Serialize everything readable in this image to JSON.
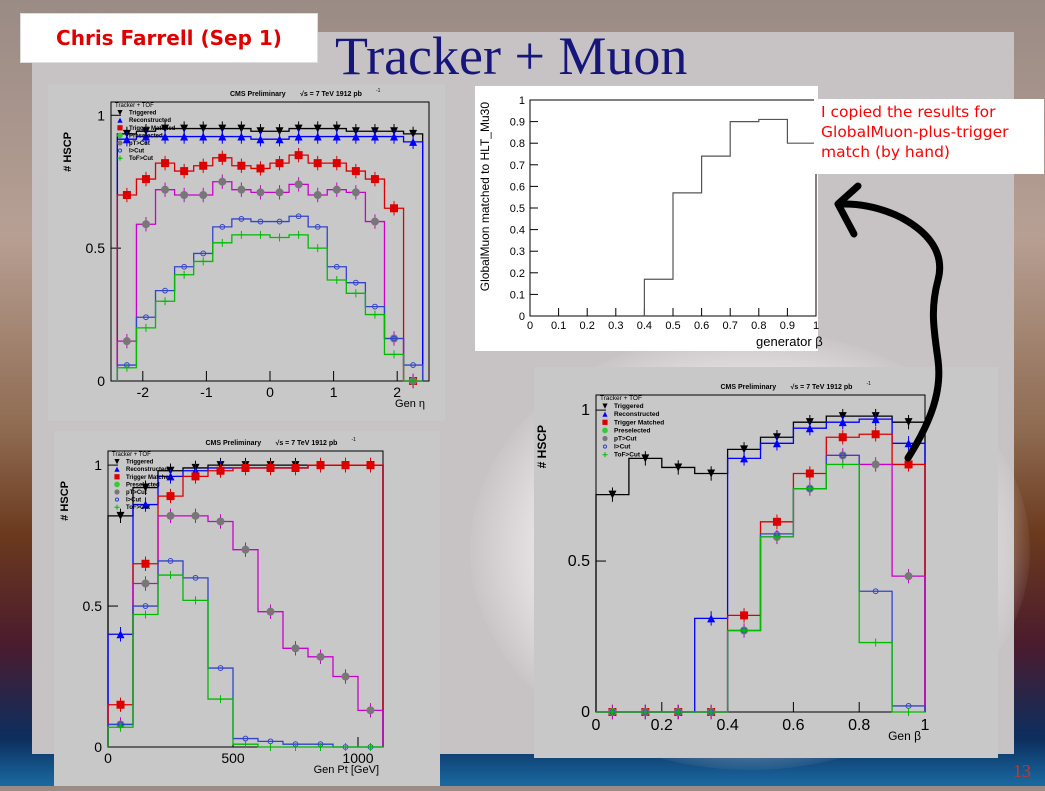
{
  "slide": {
    "title": "Tracker + Muon",
    "author": "Chris Farrell (Sep 1)",
    "page_number": "13",
    "note": "I copied the results for GlobalMuon-plus-trigger match (by hand)"
  },
  "plot_header": "CMS Preliminary",
  "plot_energy": "√s = 7 TeV   1912 pb",
  "plot_energy_exp": "-1",
  "legend": {
    "title": "Tracker + TOF",
    "entries": [
      "Triggered",
      "Reconstructed",
      "Trigger Matched",
      "Preselected",
      "pT>Cut",
      "I>Cut",
      "ToF>Cut"
    ]
  },
  "colors": {
    "triggered": "#000000",
    "reconstructed": "#0000ff",
    "matched": "#dd0000",
    "preselected": "#33cc33",
    "pt": "#cc00cc",
    "ih": "#3344cc",
    "tof": "#00bb00"
  },
  "chart_data": [
    {
      "type": "line",
      "id": "eta",
      "xlabel": "Gen η",
      "ylabel": "# HSCP",
      "xlim": [
        -2.5,
        2.5
      ],
      "ylim": [
        0,
        1.05
      ],
      "xticks": [
        "-2",
        "-1",
        "0",
        "1",
        "2"
      ],
      "yticks": [
        "0",
        "0.5",
        "1"
      ],
      "x": [
        -2.25,
        -1.95,
        -1.65,
        -1.35,
        -1.05,
        -0.75,
        -0.45,
        -0.15,
        0.15,
        0.45,
        0.75,
        1.05,
        1.35,
        1.65,
        1.95,
        2.25
      ],
      "series": [
        {
          "name": "Triggered",
          "values": [
            0.93,
            0.94,
            0.95,
            0.95,
            0.95,
            0.95,
            0.95,
            0.94,
            0.94,
            0.95,
            0.95,
            0.95,
            0.94,
            0.94,
            0.94,
            0.93
          ]
        },
        {
          "name": "Reconstructed",
          "values": [
            0.91,
            0.92,
            0.92,
            0.92,
            0.92,
            0.92,
            0.92,
            0.91,
            0.91,
            0.92,
            0.92,
            0.92,
            0.92,
            0.92,
            0.92,
            0.9
          ]
        },
        {
          "name": "Trigger Matched",
          "values": [
            0.7,
            0.76,
            0.82,
            0.79,
            0.81,
            0.84,
            0.81,
            0.8,
            0.82,
            0.85,
            0.82,
            0.82,
            0.79,
            0.76,
            0.65,
            0.0
          ]
        },
        {
          "name": "pT>Cut",
          "values": [
            0.15,
            0.59,
            0.72,
            0.7,
            0.7,
            0.75,
            0.72,
            0.71,
            0.71,
            0.74,
            0.7,
            0.72,
            0.71,
            0.6,
            0.16,
            0.0
          ]
        },
        {
          "name": "I>Cut",
          "values": [
            0.06,
            0.24,
            0.34,
            0.43,
            0.48,
            0.58,
            0.61,
            0.6,
            0.6,
            0.62,
            0.58,
            0.43,
            0.37,
            0.28,
            0.16,
            0.06
          ]
        },
        {
          "name": "ToF>Cut",
          "values": [
            0.05,
            0.2,
            0.3,
            0.4,
            0.45,
            0.52,
            0.55,
            0.55,
            0.54,
            0.55,
            0.5,
            0.38,
            0.33,
            0.25,
            0.1,
            0.0
          ]
        }
      ]
    },
    {
      "type": "line",
      "id": "pt",
      "xlabel": "Gen Pt [GeV]",
      "ylabel": "# HSCP",
      "xlim": [
        0,
        1100
      ],
      "ylim": [
        0,
        1.05
      ],
      "xticks": [
        "0",
        "500",
        "1000"
      ],
      "yticks": [
        "0",
        "0.5",
        "1"
      ],
      "x": [
        50,
        150,
        250,
        350,
        450,
        550,
        650,
        750,
        850,
        950,
        1050
      ],
      "series": [
        {
          "name": "Triggered",
          "values": [
            0.82,
            0.92,
            0.98,
            0.99,
            1.0,
            1.0,
            1.0,
            1.0,
            1.0,
            1.0,
            1.0
          ]
        },
        {
          "name": "Reconstructed",
          "values": [
            0.4,
            0.86,
            0.96,
            0.98,
            0.99,
            0.99,
            0.99,
            0.99,
            1.0,
            1.0,
            1.0
          ]
        },
        {
          "name": "Trigger Matched",
          "values": [
            0.15,
            0.65,
            0.89,
            0.96,
            0.98,
            0.99,
            0.99,
            0.99,
            1.0,
            1.0,
            1.0
          ]
        },
        {
          "name": "pT>Cut",
          "values": [
            0.08,
            0.58,
            0.82,
            0.82,
            0.8,
            0.7,
            0.48,
            0.35,
            0.32,
            0.25,
            0.13
          ]
        },
        {
          "name": "I>Cut",
          "values": [
            0.08,
            0.5,
            0.66,
            0.6,
            0.28,
            0.03,
            0.02,
            0.01,
            0.01,
            0.0,
            0.0
          ]
        },
        {
          "name": "ToF>Cut",
          "values": [
            0.07,
            0.47,
            0.61,
            0.52,
            0.17,
            0.01,
            0.0,
            0.0,
            0.0,
            0.0,
            0.0
          ]
        }
      ]
    },
    {
      "type": "line",
      "id": "beta_main",
      "xlabel": "Gen β",
      "ylabel": "# HSCP",
      "xlim": [
        0,
        1
      ],
      "ylim": [
        0,
        1.05
      ],
      "xticks": [
        "0",
        "0.2",
        "0.4",
        "0.6",
        "0.8",
        "1"
      ],
      "yticks": [
        "0",
        "0.5",
        "1"
      ],
      "x": [
        0.05,
        0.15,
        0.25,
        0.35,
        0.45,
        0.55,
        0.65,
        0.75,
        0.85,
        0.95
      ],
      "series": [
        {
          "name": "Triggered",
          "values": [
            0.72,
            0.84,
            0.81,
            0.79,
            0.87,
            0.91,
            0.96,
            0.98,
            0.98,
            0.96
          ]
        },
        {
          "name": "Reconstructed",
          "values": [
            0.0,
            0.0,
            0.0,
            0.31,
            0.84,
            0.89,
            0.94,
            0.96,
            0.97,
            0.89
          ]
        },
        {
          "name": "Trigger Matched",
          "values": [
            0.0,
            0.0,
            0.0,
            0.0,
            0.32,
            0.63,
            0.79,
            0.91,
            0.92,
            0.82
          ]
        },
        {
          "name": "pT>Cut",
          "values": [
            0.0,
            0.0,
            0.0,
            0.0,
            0.27,
            0.58,
            0.74,
            0.85,
            0.82,
            0.45
          ]
        },
        {
          "name": "I>Cut",
          "values": [
            0.0,
            0.0,
            0.0,
            0.0,
            0.27,
            0.59,
            0.74,
            0.85,
            0.4,
            0.02
          ]
        },
        {
          "name": "ToF>Cut",
          "values": [
            0.0,
            0.0,
            0.0,
            0.0,
            0.27,
            0.58,
            0.74,
            0.82,
            0.23,
            0.0
          ]
        }
      ]
    },
    {
      "type": "line",
      "id": "beta_globalmuon",
      "xlabel": "generator β",
      "ylabel": "GlobalMuon matched to HLT_Mu30",
      "xlim": [
        0,
        1
      ],
      "ylim": [
        0,
        1
      ],
      "xticks": [
        "0",
        "0.1",
        "0.2",
        "0.3",
        "0.4",
        "0.5",
        "0.6",
        "0.7",
        "0.8",
        "0.9",
        "1"
      ],
      "yticks": [
        "0",
        "0.1",
        "0.2",
        "0.3",
        "0.4",
        "0.5",
        "0.6",
        "0.7",
        "0.8",
        "0.9",
        "1"
      ],
      "x": [
        0.45,
        0.55,
        0.65,
        0.75,
        0.85,
        0.95
      ],
      "series": [
        {
          "values": [
            0.17,
            0.57,
            0.74,
            0.9,
            0.91,
            0.8
          ]
        }
      ]
    }
  ]
}
